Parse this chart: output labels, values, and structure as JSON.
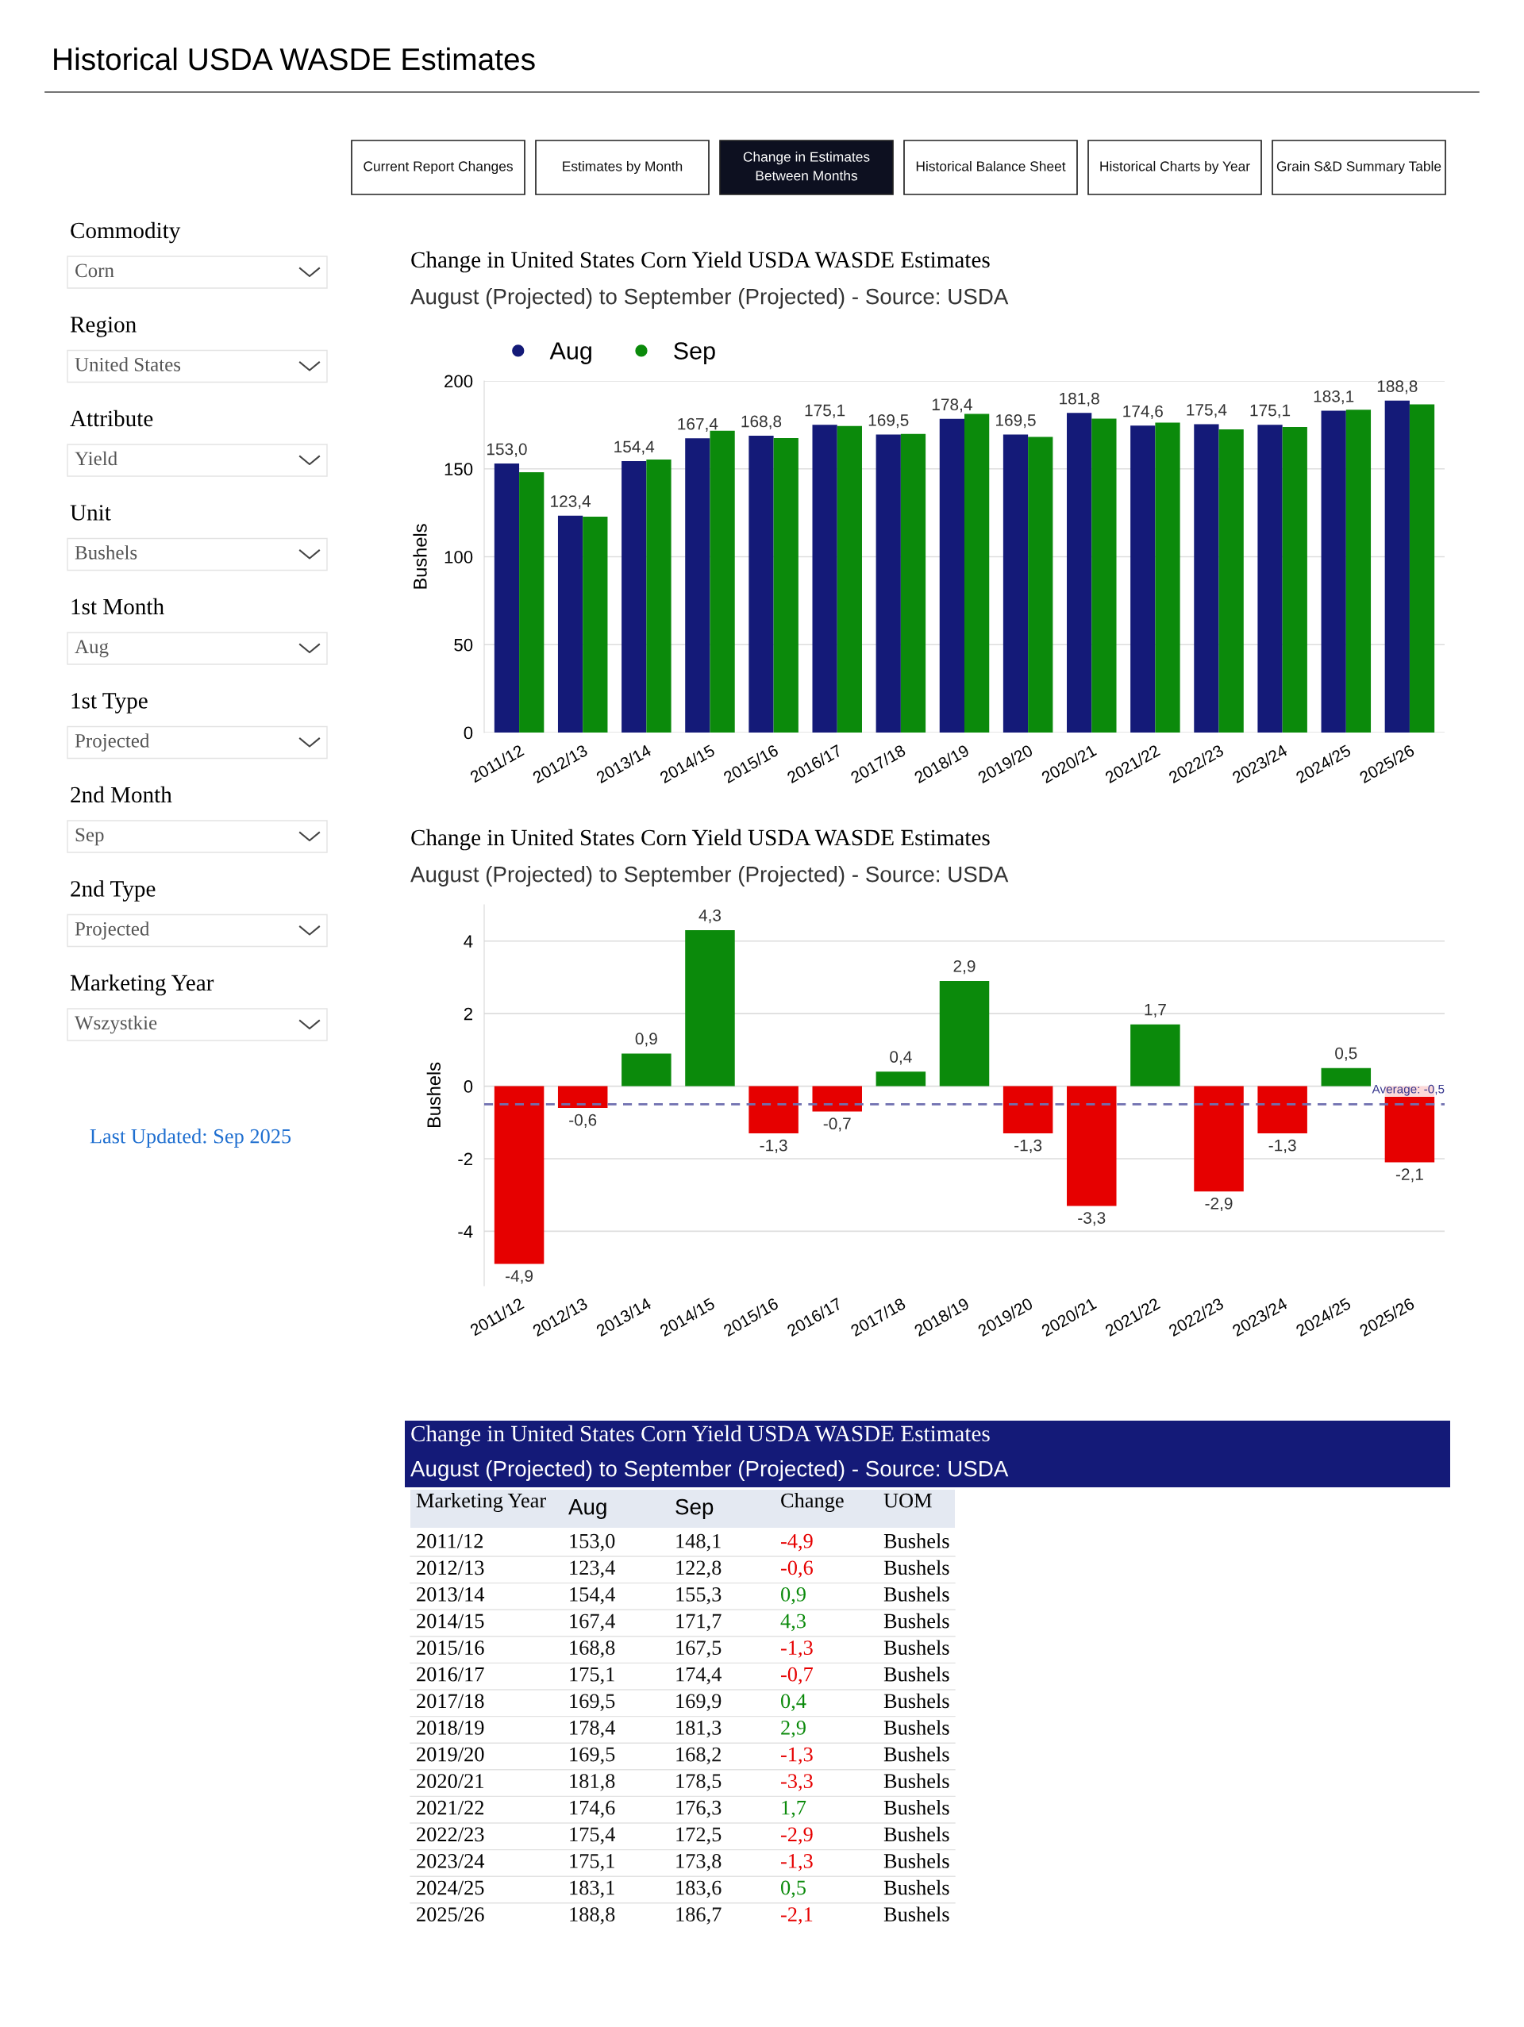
{
  "chart_data": [
    {
      "type": "other",
      "title": "Historical USDA WASDE Estimates",
      "annotations": [
        "Current Report Changes",
        "Estimates by Month",
        "Change in Estimates\nBetween Months",
        "Historical Balance Sheet",
        "Historical Charts by Year",
        "Grain S&D Summary Table",
        "Commodity",
        "Corn",
        "Region",
        "United States",
        "Attribute",
        "Yield",
        "Unit",
        "Bushels",
        "1st Month",
        "Aug",
        "1st Type",
        "Projected",
        "2nd Month",
        "Sep",
        "2nd Type",
        "Projected",
        "Marketing Year",
        "Wszystkie",
        "Last Updated: Sep 2025"
      ]
    },
    {
      "type": "bar",
      "title": "Change in United States Corn Yield USDA WASDE Estimates",
      "subtitle": "August (Projected) to September (Projected) - Source: USDA",
      "ylabel": "Bushels",
      "categories": [
        "2011/12",
        "2012/13",
        "2013/14",
        "2014/15",
        "2015/16",
        "2016/17",
        "2017/18",
        "2018/19",
        "2019/20",
        "2020/21",
        "2021/22",
        "2022/23",
        "2023/24",
        "2024/25",
        "2025/26"
      ],
      "series": [
        {
          "name": "Aug",
          "color": "#141a78",
          "values": [
            153.0,
            123.4,
            154.4,
            167.4,
            168.8,
            175.1,
            169.5,
            178.4,
            169.5,
            181.8,
            174.6,
            175.4,
            175.1,
            183.1,
            188.8
          ],
          "value_labels": [
            "153,0",
            "123,4",
            "154,4",
            "167,4",
            "168,8",
            "175,1",
            "169,5",
            "178,4",
            "169,5",
            "181,8",
            "174,6",
            "175,4",
            "175,1",
            "183,1",
            "188,8"
          ]
        },
        {
          "name": "Sep",
          "color": "#0b8a0b",
          "values": [
            148.1,
            122.8,
            155.3,
            171.7,
            167.5,
            174.4,
            169.9,
            181.3,
            168.2,
            178.5,
            176.3,
            172.5,
            173.8,
            183.6,
            186.7
          ]
        }
      ],
      "ylim": [
        0,
        200
      ],
      "yticks": [
        0,
        50,
        100,
        150,
        200
      ],
      "grid": "y",
      "legend": "top left"
    },
    {
      "type": "bar",
      "title": "Change in United States Corn Yield USDA WASDE Estimates",
      "subtitle": "August (Projected) to September (Projected) - Source: USDA",
      "ylabel": "Bushels",
      "categories": [
        "2011/12",
        "2012/13",
        "2013/14",
        "2014/15",
        "2015/16",
        "2016/17",
        "2017/18",
        "2018/19",
        "2019/20",
        "2020/21",
        "2021/22",
        "2022/23",
        "2023/24",
        "2024/25",
        "2025/26"
      ],
      "values": [
        -4.9,
        -0.6,
        0.9,
        4.3,
        -1.3,
        -0.7,
        0.4,
        2.9,
        -1.3,
        -3.3,
        1.7,
        -2.9,
        -1.3,
        0.5,
        -2.1
      ],
      "colors": [
        "#e60000",
        "#e60000",
        "#0b8a0b",
        "#0b8a0b",
        "#e60000",
        "#e60000",
        "#0b8a0b",
        "#0b8a0b",
        "#e60000",
        "#e60000",
        "#0b8a0b",
        "#e60000",
        "#e60000",
        "#0b8a0b",
        "#e60000"
      ],
      "value_labels": [
        "-4,9",
        "-0,6",
        "0,9",
        "4,3",
        "-1,3",
        "-0,7",
        "0,4",
        "2,9",
        "-1,3",
        "-3,3",
        "1,7",
        "-2,9",
        "-1,3",
        "0,5",
        "-2,1"
      ],
      "ylim": [
        -5.5,
        5
      ],
      "yticks": [
        -4,
        -2,
        0,
        2,
        4
      ],
      "grid": "y",
      "ref_lines": [
        {
          "axis": "y",
          "value": -0.5,
          "label": "Average: -0,5",
          "color": "#7070b0",
          "line_style": "dashed"
        }
      ]
    },
    {
      "type": "other",
      "title": "Change in United States Corn Yield USDA WASDE Estimates",
      "subtitle": "August (Projected) to September (Projected) - Source: USDA",
      "ylabel": "Marketing Year",
      "y2label": "UOM",
      "categories": [
        "2011/12",
        "2012/13",
        "2013/14",
        "2014/15",
        "2015/16",
        "2016/17",
        "2017/18",
        "2018/19",
        "2019/20",
        "2020/21",
        "2021/22",
        "2022/23",
        "2023/24",
        "2024/25",
        "2025/26"
      ],
      "y2_categories": [
        "Bushels",
        "Bushels",
        "Bushels",
        "Bushels",
        "Bushels",
        "Bushels",
        "Bushels",
        "Bushels",
        "Bushels",
        "Bushels",
        "Bushels",
        "Bushels",
        "Bushels",
        "Bushels",
        "Bushels"
      ],
      "series": [
        {
          "name": "Aug",
          "values": [
            153.0,
            123.4,
            154.4,
            167.4,
            168.8,
            175.1,
            169.5,
            178.4,
            169.5,
            181.8,
            174.6,
            175.4,
            175.1,
            183.1,
            188.8
          ],
          "value_labels": [
            "153,0",
            "123,4",
            "154,4",
            "167,4",
            "168,8",
            "175,1",
            "169,5",
            "178,4",
            "169,5",
            "181,8",
            "174,6",
            "175,4",
            "175,1",
            "183,1",
            "188,8"
          ]
        },
        {
          "name": "Sep",
          "values": [
            148.1,
            122.8,
            155.3,
            171.7,
            167.5,
            174.4,
            169.9,
            181.3,
            168.2,
            178.5,
            176.3,
            172.5,
            173.8,
            183.6,
            186.7
          ],
          "value_labels": [
            "148,1",
            "122,8",
            "155,3",
            "171,7",
            "167,5",
            "174,4",
            "169,9",
            "181,3",
            "168,2",
            "178,5",
            "176,3",
            "172,5",
            "173,8",
            "183,6",
            "186,7"
          ]
        },
        {
          "name": "Change",
          "values": [
            -4.9,
            -0.6,
            0.9,
            4.3,
            -1.3,
            -0.7,
            0.4,
            2.9,
            -1.3,
            -3.3,
            1.7,
            -2.9,
            -1.3,
            0.5,
            -2.1
          ],
          "value_labels": [
            "-4,9",
            "-0,6",
            "0,9",
            "4,3",
            "-1,3",
            "-0,7",
            "0,4",
            "2,9",
            "-1,3",
            "-3,3",
            "1,7",
            "-2,9",
            "-1,3",
            "0,5",
            "-2,1"
          ],
          "colors": [
            "#e60000",
            "#e60000",
            "#0b8a0b",
            "#0b8a0b",
            "#e60000",
            "#e60000",
            "#0b8a0b",
            "#0b8a0b",
            "#e60000",
            "#e60000",
            "#0b8a0b",
            "#e60000",
            "#e60000",
            "#0b8a0b",
            "#e60000"
          ]
        }
      ]
    }
  ]
}
